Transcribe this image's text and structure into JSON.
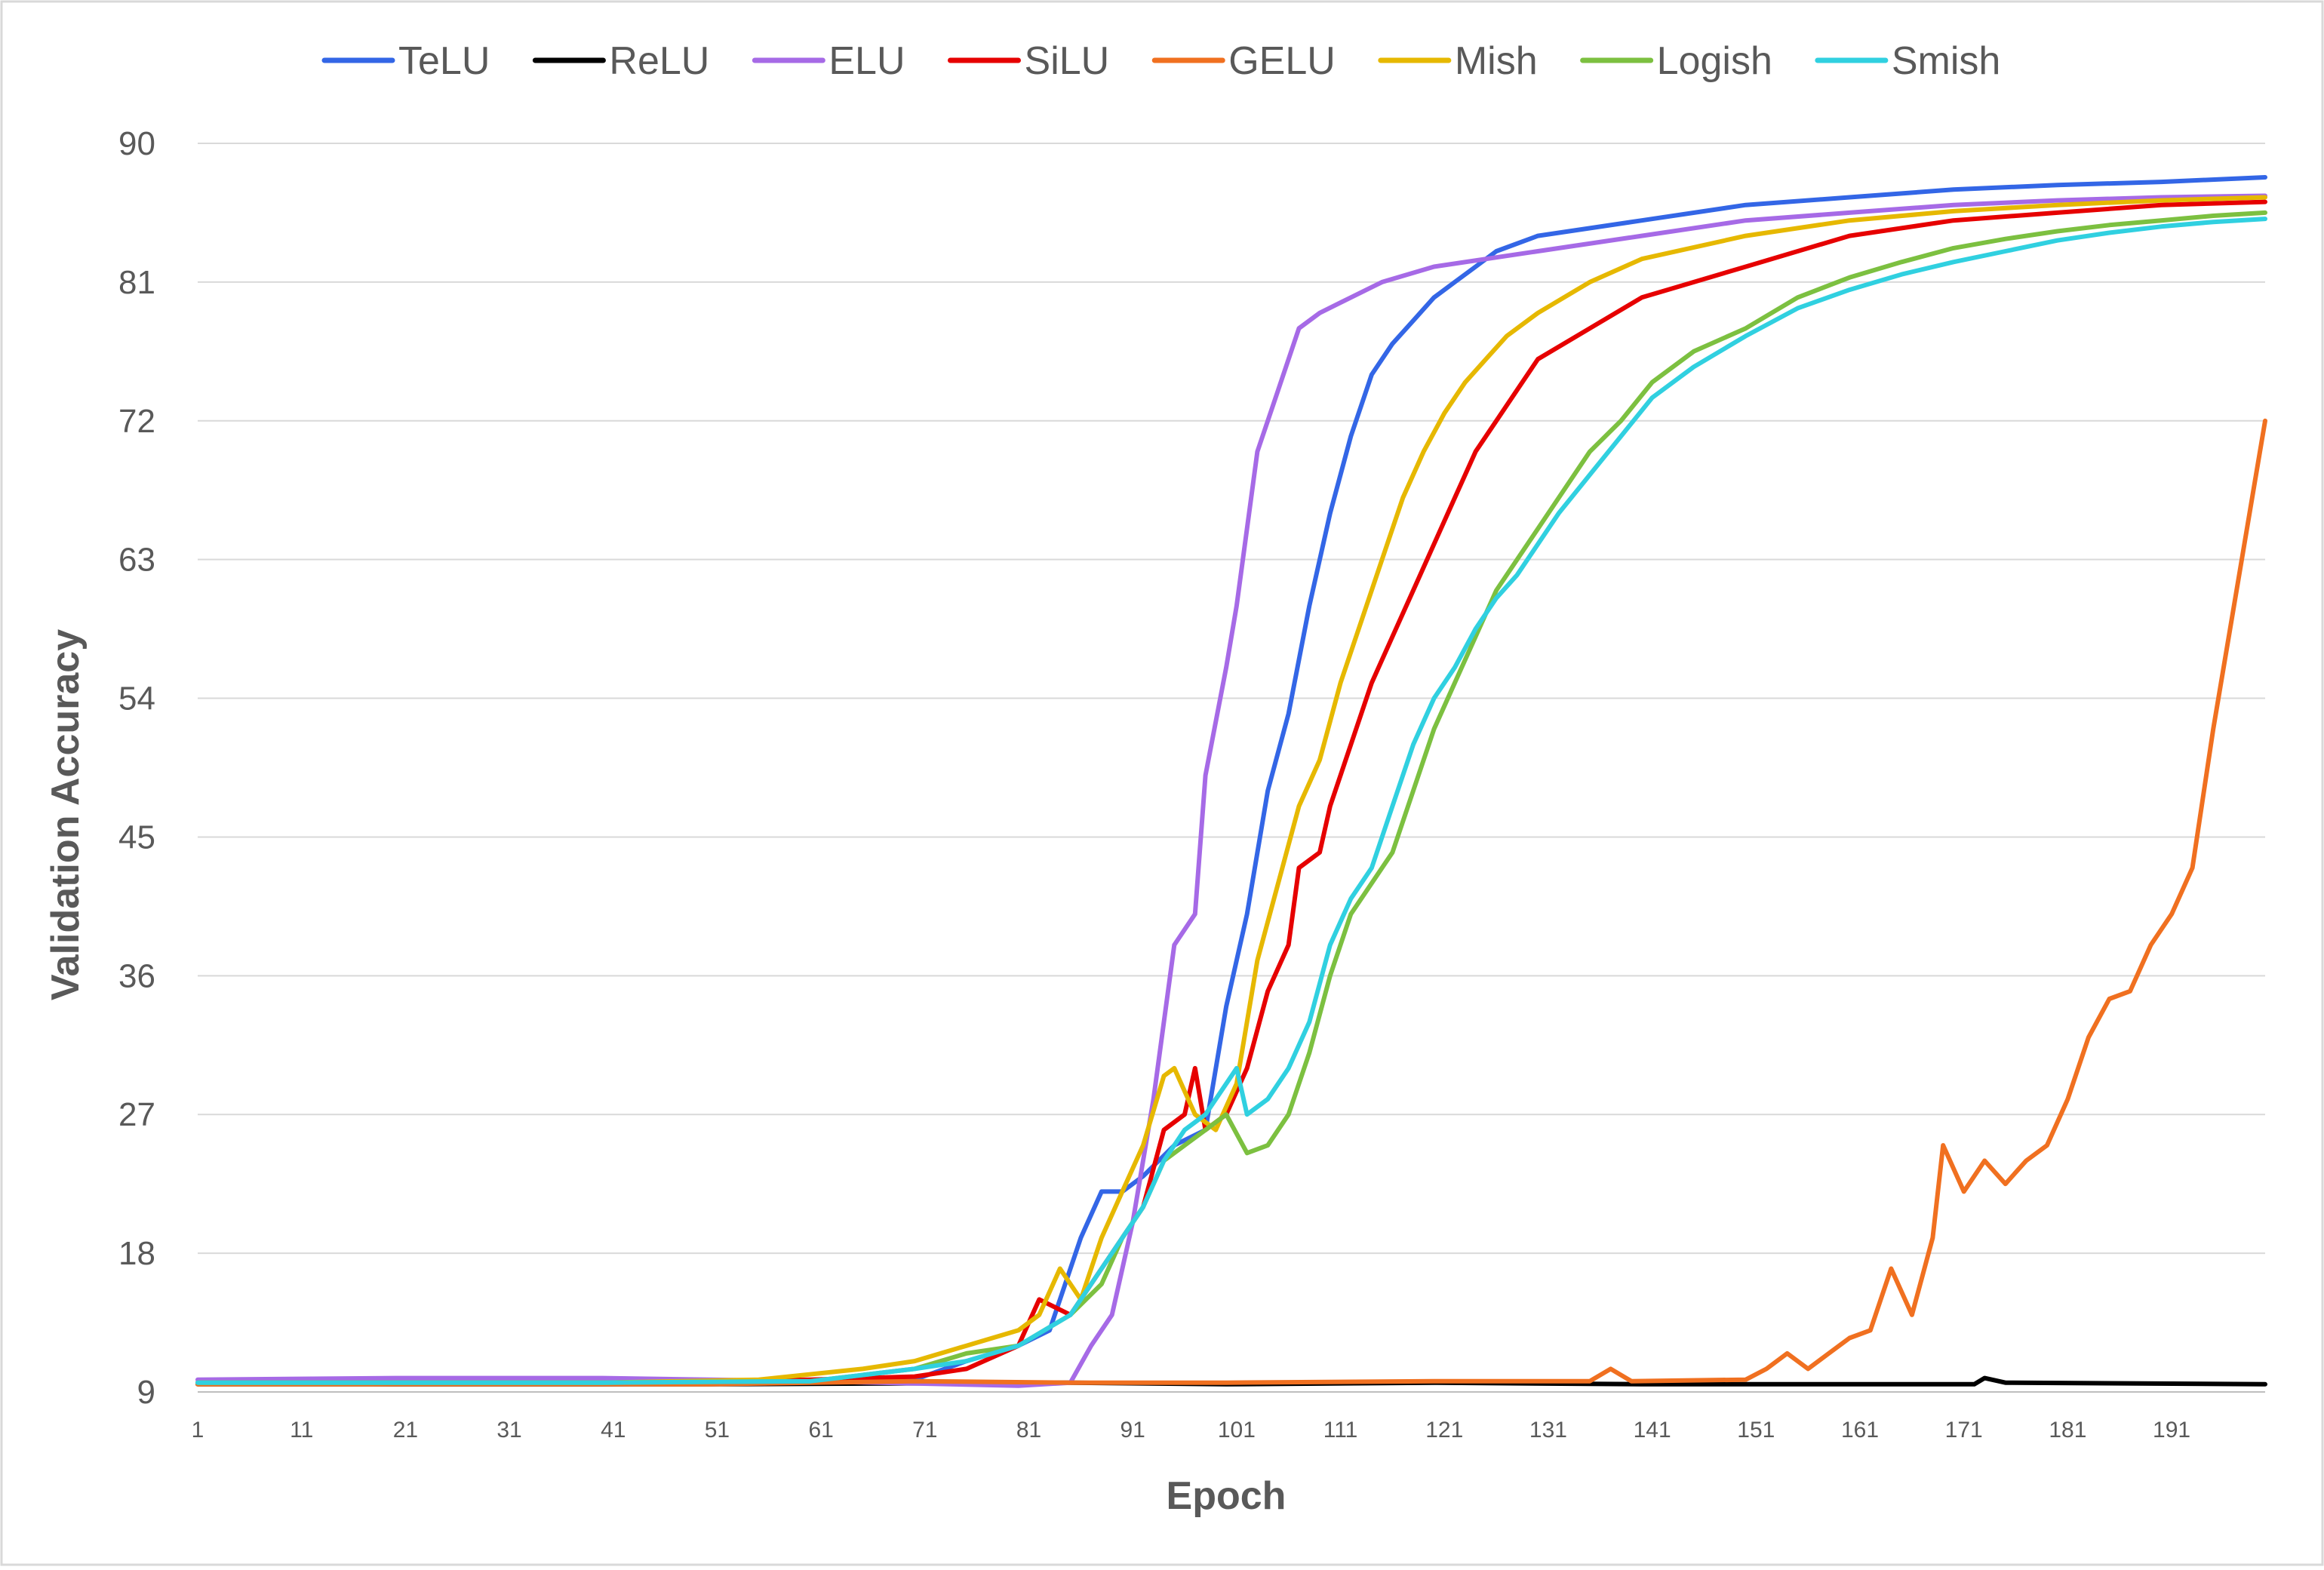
{
  "chart_data": {
    "type": "line",
    "xlabel": "Epoch",
    "ylabel": "Validation Accuracy",
    "xlim": [
      1,
      200
    ],
    "ylim": [
      9,
      90
    ],
    "x_ticks": [
      1,
      11,
      21,
      31,
      41,
      51,
      61,
      71,
      81,
      91,
      101,
      111,
      121,
      131,
      141,
      151,
      161,
      171,
      181,
      191
    ],
    "y_ticks": [
      9,
      18,
      27,
      36,
      45,
      54,
      63,
      72,
      81,
      90
    ],
    "grid": "horizontal",
    "legend": "top",
    "series": [
      {
        "name": "TeLU",
        "color": "#3366e6",
        "points": [
          [
            1,
            9.6
          ],
          [
            20,
            9.5
          ],
          [
            40,
            9.5
          ],
          [
            60,
            9.6
          ],
          [
            70,
            9.8
          ],
          [
            75,
            11
          ],
          [
            80,
            12
          ],
          [
            83,
            13
          ],
          [
            86,
            19
          ],
          [
            88,
            22
          ],
          [
            90,
            22
          ],
          [
            92,
            23
          ],
          [
            95,
            25
          ],
          [
            98,
            26
          ],
          [
            100,
            34
          ],
          [
            102,
            40
          ],
          [
            104,
            48
          ],
          [
            106,
            53
          ],
          [
            108,
            60
          ],
          [
            110,
            66
          ],
          [
            112,
            71
          ],
          [
            114,
            75
          ],
          [
            116,
            77
          ],
          [
            118,
            78.5
          ],
          [
            120,
            80
          ],
          [
            122,
            81
          ],
          [
            124,
            82
          ],
          [
            126,
            83
          ],
          [
            130,
            84
          ],
          [
            140,
            85
          ],
          [
            150,
            86
          ],
          [
            160,
            86.5
          ],
          [
            170,
            87
          ],
          [
            180,
            87.3
          ],
          [
            190,
            87.5
          ],
          [
            200,
            87.8
          ]
        ]
      },
      {
        "name": "ReLU",
        "color": "#000000",
        "points": [
          [
            1,
            9.5
          ],
          [
            50,
            9.5
          ],
          [
            85,
            9.6
          ],
          [
            100,
            9.5
          ],
          [
            120,
            9.6
          ],
          [
            140,
            9.5
          ],
          [
            160,
            9.5
          ],
          [
            172,
            9.5
          ],
          [
            173,
            9.9
          ],
          [
            175,
            9.6
          ],
          [
            200,
            9.5
          ]
        ]
      },
      {
        "name": "ELU",
        "color": "#a66ae6",
        "points": [
          [
            1,
            9.8
          ],
          [
            20,
            9.9
          ],
          [
            40,
            9.9
          ],
          [
            60,
            9.7
          ],
          [
            80,
            9.4
          ],
          [
            85,
            9.6
          ],
          [
            87,
            12
          ],
          [
            89,
            14
          ],
          [
            91,
            20
          ],
          [
            93,
            28
          ],
          [
            95,
            38
          ],
          [
            97,
            40
          ],
          [
            98,
            49
          ],
          [
            100,
            56
          ],
          [
            101,
            60
          ],
          [
            103,
            70
          ],
          [
            105,
            74
          ],
          [
            107,
            78
          ],
          [
            109,
            79
          ],
          [
            112,
            80
          ],
          [
            115,
            81
          ],
          [
            120,
            82
          ],
          [
            130,
            83
          ],
          [
            140,
            84
          ],
          [
            150,
            85
          ],
          [
            160,
            85.5
          ],
          [
            170,
            86
          ],
          [
            180,
            86.3
          ],
          [
            190,
            86.5
          ],
          [
            200,
            86.6
          ]
        ]
      },
      {
        "name": "SiLU",
        "color": "#e60000",
        "points": [
          [
            1,
            9.6
          ],
          [
            40,
            9.6
          ],
          [
            60,
            9.8
          ],
          [
            70,
            10
          ],
          [
            75,
            10.5
          ],
          [
            80,
            12
          ],
          [
            82,
            15
          ],
          [
            85,
            14
          ],
          [
            88,
            17
          ],
          [
            90,
            19
          ],
          [
            92,
            21
          ],
          [
            94,
            26
          ],
          [
            96,
            27
          ],
          [
            97,
            30
          ],
          [
            98,
            26
          ],
          [
            100,
            27
          ],
          [
            102,
            30
          ],
          [
            104,
            35
          ],
          [
            106,
            38
          ],
          [
            107,
            43
          ],
          [
            109,
            44
          ],
          [
            110,
            47
          ],
          [
            112,
            51
          ],
          [
            114,
            55
          ],
          [
            116,
            58
          ],
          [
            118,
            61
          ],
          [
            120,
            64
          ],
          [
            122,
            67
          ],
          [
            124,
            70
          ],
          [
            126,
            72
          ],
          [
            128,
            74
          ],
          [
            130,
            76
          ],
          [
            135,
            78
          ],
          [
            140,
            80
          ],
          [
            150,
            82
          ],
          [
            160,
            84
          ],
          [
            170,
            85
          ],
          [
            180,
            85.5
          ],
          [
            190,
            86
          ],
          [
            200,
            86.2
          ]
        ]
      },
      {
        "name": "GELU",
        "color": "#f07020",
        "points": [
          [
            1,
            9.5
          ],
          [
            50,
            9.5
          ],
          [
            70,
            9.7
          ],
          [
            85,
            9.6
          ],
          [
            100,
            9.6
          ],
          [
            120,
            9.7
          ],
          [
            135,
            9.7
          ],
          [
            137,
            10.5
          ],
          [
            139,
            9.7
          ],
          [
            150,
            9.8
          ],
          [
            152,
            10.5
          ],
          [
            154,
            11.5
          ],
          [
            156,
            10.5
          ],
          [
            158,
            11.5
          ],
          [
            160,
            12.5
          ],
          [
            162,
            13
          ],
          [
            164,
            17
          ],
          [
            166,
            14
          ],
          [
            168,
            19
          ],
          [
            169,
            25
          ],
          [
            171,
            22
          ],
          [
            173,
            24
          ],
          [
            175,
            22.5
          ],
          [
            177,
            24
          ],
          [
            179,
            25
          ],
          [
            181,
            28
          ],
          [
            183,
            32
          ],
          [
            185,
            34.5
          ],
          [
            187,
            35
          ],
          [
            189,
            38
          ],
          [
            191,
            40
          ],
          [
            193,
            43
          ],
          [
            195,
            52
          ],
          [
            197,
            60
          ],
          [
            199,
            68
          ],
          [
            200,
            72
          ]
        ]
      },
      {
        "name": "Mish",
        "color": "#e6b800",
        "points": [
          [
            1,
            9.6
          ],
          [
            40,
            9.6
          ],
          [
            55,
            9.8
          ],
          [
            65,
            10.5
          ],
          [
            70,
            11
          ],
          [
            75,
            12
          ],
          [
            80,
            13
          ],
          [
            82,
            14
          ],
          [
            84,
            17
          ],
          [
            86,
            15
          ],
          [
            88,
            19
          ],
          [
            90,
            22
          ],
          [
            92,
            25
          ],
          [
            94,
            29.5
          ],
          [
            95,
            30
          ],
          [
            97,
            27
          ],
          [
            99,
            26
          ],
          [
            101,
            29
          ],
          [
            103,
            37
          ],
          [
            105,
            42
          ],
          [
            107,
            47
          ],
          [
            109,
            50
          ],
          [
            111,
            55
          ],
          [
            113,
            59
          ],
          [
            115,
            63
          ],
          [
            117,
            67
          ],
          [
            119,
            70
          ],
          [
            121,
            72.5
          ],
          [
            123,
            74.5
          ],
          [
            125,
            76
          ],
          [
            127,
            77.5
          ],
          [
            130,
            79
          ],
          [
            135,
            81
          ],
          [
            140,
            82.5
          ],
          [
            150,
            84
          ],
          [
            160,
            85
          ],
          [
            170,
            85.6
          ],
          [
            180,
            86
          ],
          [
            190,
            86.3
          ],
          [
            200,
            86.5
          ]
        ]
      },
      {
        "name": "Logish",
        "color": "#7cc040",
        "points": [
          [
            1,
            9.6
          ],
          [
            40,
            9.6
          ],
          [
            60,
            9.7
          ],
          [
            70,
            10.5
          ],
          [
            75,
            11.5
          ],
          [
            80,
            12
          ],
          [
            85,
            14
          ],
          [
            88,
            16
          ],
          [
            90,
            19
          ],
          [
            92,
            21
          ],
          [
            94,
            24
          ],
          [
            96,
            25
          ],
          [
            98,
            26
          ],
          [
            100,
            27
          ],
          [
            102,
            24.5
          ],
          [
            104,
            25
          ],
          [
            106,
            27
          ],
          [
            108,
            31
          ],
          [
            110,
            36
          ],
          [
            112,
            40
          ],
          [
            114,
            42
          ],
          [
            116,
            44
          ],
          [
            118,
            48
          ],
          [
            120,
            52
          ],
          [
            122,
            55
          ],
          [
            124,
            58
          ],
          [
            126,
            61
          ],
          [
            128,
            63
          ],
          [
            130,
            65
          ],
          [
            132,
            67
          ],
          [
            135,
            70
          ],
          [
            138,
            72
          ],
          [
            141,
            74.5
          ],
          [
            145,
            76.5
          ],
          [
            150,
            78
          ],
          [
            155,
            80
          ],
          [
            160,
            81.3
          ],
          [
            165,
            82.3
          ],
          [
            170,
            83.2
          ],
          [
            175,
            83.8
          ],
          [
            180,
            84.3
          ],
          [
            185,
            84.7
          ],
          [
            190,
            85
          ],
          [
            195,
            85.3
          ],
          [
            200,
            85.5
          ]
        ]
      },
      {
        "name": "Smish",
        "color": "#30d0e0",
        "points": [
          [
            1,
            9.6
          ],
          [
            40,
            9.6
          ],
          [
            60,
            9.7
          ],
          [
            70,
            10.5
          ],
          [
            75,
            11
          ],
          [
            80,
            12
          ],
          [
            85,
            14
          ],
          [
            88,
            17
          ],
          [
            90,
            19
          ],
          [
            92,
            21
          ],
          [
            94,
            24
          ],
          [
            96,
            26
          ],
          [
            98,
            27
          ],
          [
            100,
            29
          ],
          [
            101,
            30
          ],
          [
            102,
            27
          ],
          [
            104,
            28
          ],
          [
            106,
            30
          ],
          [
            108,
            33
          ],
          [
            110,
            38
          ],
          [
            112,
            41
          ],
          [
            114,
            43
          ],
          [
            116,
            47
          ],
          [
            118,
            51
          ],
          [
            120,
            54
          ],
          [
            122,
            56
          ],
          [
            124,
            58.5
          ],
          [
            126,
            60.5
          ],
          [
            128,
            62
          ],
          [
            130,
            64
          ],
          [
            132,
            66
          ],
          [
            135,
            68.5
          ],
          [
            138,
            71
          ],
          [
            141,
            73.5
          ],
          [
            145,
            75.5
          ],
          [
            150,
            77.5
          ],
          [
            155,
            79.3
          ],
          [
            160,
            80.5
          ],
          [
            165,
            81.5
          ],
          [
            170,
            82.3
          ],
          [
            175,
            83
          ],
          [
            180,
            83.7
          ],
          [
            185,
            84.2
          ],
          [
            190,
            84.6
          ],
          [
            195,
            84.9
          ],
          [
            200,
            85.1
          ]
        ]
      }
    ]
  }
}
